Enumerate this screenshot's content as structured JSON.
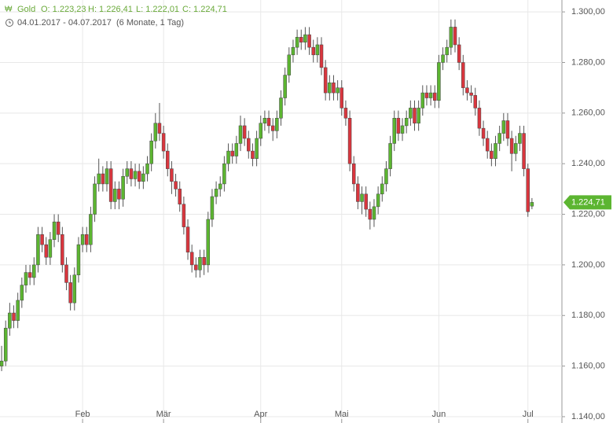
{
  "chart_data": {
    "type": "candlestick",
    "name": "Gold",
    "ohlc_labels": [
      {
        "value": 1223.23,
        "label": "O: 1.223,23"
      },
      {
        "value": 1226.41,
        "label": "H: 1.226,41"
      },
      {
        "value": 1222.01,
        "label": "L: 1.222,01"
      },
      {
        "value": 1224.71,
        "label": "C: 1.224,71"
      }
    ],
    "period": "04.01.2017 - 04.07.2017",
    "range_label": "(6 Monate, 1 Tag)",
    "last_price": {
      "value": 1224.71,
      "label": "1.224,71"
    },
    "up_color": "#5cb531",
    "down_color": "#d9363e",
    "grid": true,
    "xlim": [
      -0.4,
      138.4
    ],
    "xticks": [
      {
        "value": 20,
        "label": "Feb"
      },
      {
        "value": 40,
        "label": "Mär"
      },
      {
        "value": 64,
        "label": "Apr"
      },
      {
        "value": 84,
        "label": "Mai"
      },
      {
        "value": 108,
        "label": "Jun"
      },
      {
        "value": 130,
        "label": "Jul"
      }
    ],
    "ylim": [
      1137.5,
      1304.7
    ],
    "yticks": [
      {
        "value": 1140,
        "label": "1.140,00"
      },
      {
        "value": 1160,
        "label": "1.160,00"
      },
      {
        "value": 1180,
        "label": "1.180,00"
      },
      {
        "value": 1200,
        "label": "1.200,00"
      },
      {
        "value": 1220,
        "label": "1.220,00"
      },
      {
        "value": 1240,
        "label": "1.240,00"
      },
      {
        "value": 1260,
        "label": "1.260,00"
      },
      {
        "value": 1280,
        "label": "1.280,00"
      },
      {
        "value": 1300,
        "label": "1.300,00"
      }
    ],
    "open": [
      1160,
      1162,
      1175,
      1181,
      1178,
      1186,
      1192,
      1197,
      1195,
      1200,
      1212,
      1208,
      1203,
      1210,
      1217,
      1212,
      1200,
      1193,
      1185,
      1196,
      1208,
      1212,
      1208,
      1220,
      1232,
      1236,
      1232,
      1238,
      1225,
      1230,
      1226,
      1235,
      1238,
      1234,
      1237,
      1233,
      1236,
      1240,
      1249,
      1256,
      1252,
      1245,
      1238,
      1233,
      1230,
      1224,
      1215,
      1205,
      1200,
      1198,
      1203,
      1200,
      1218,
      1227,
      1230,
      1232,
      1240,
      1245,
      1243,
      1248,
      1255,
      1250,
      1245,
      1242,
      1250,
      1256,
      1258,
      1255,
      1253,
      1258,
      1266,
      1275,
      1283,
      1286,
      1290,
      1288,
      1291,
      1286,
      1283,
      1287,
      1278,
      1268,
      1272,
      1268,
      1270,
      1262,
      1258,
      1240,
      1232,
      1225,
      1228,
      1222,
      1218,
      1223,
      1228,
      1232,
      1238,
      1248,
      1258,
      1252,
      1255,
      1258,
      1262,
      1256,
      1262,
      1268,
      1266,
      1268,
      1265,
      1280,
      1283,
      1286,
      1294,
      1287,
      1280,
      1270,
      1268,
      1267,
      1262,
      1254,
      1250,
      1245,
      1242,
      1248,
      1252,
      1257,
      1250,
      1244,
      1248,
      1252,
      1238,
      1223.23
    ],
    "high": [
      1168,
      1178,
      1185,
      1184,
      1189,
      1195,
      1200,
      1200,
      1203,
      1215,
      1215,
      1211,
      1213,
      1220,
      1220,
      1215,
      1203,
      1196,
      1199,
      1211,
      1215,
      1215,
      1223,
      1235,
      1242,
      1239,
      1241,
      1241,
      1233,
      1233,
      1238,
      1241,
      1241,
      1240,
      1240,
      1239,
      1243,
      1252,
      1260,
      1264,
      1255,
      1248,
      1241,
      1236,
      1233,
      1227,
      1218,
      1208,
      1203,
      1206,
      1206,
      1221,
      1230,
      1233,
      1235,
      1243,
      1248,
      1248,
      1251,
      1259,
      1258,
      1253,
      1248,
      1253,
      1259,
      1261,
      1261,
      1258,
      1261,
      1269,
      1278,
      1286,
      1289,
      1293,
      1293,
      1294,
      1294,
      1289,
      1290,
      1290,
      1281,
      1275,
      1275,
      1273,
      1273,
      1265,
      1261,
      1243,
      1235,
      1231,
      1231,
      1225,
      1226,
      1231,
      1235,
      1241,
      1251,
      1261,
      1261,
      1258,
      1261,
      1265,
      1265,
      1265,
      1271,
      1271,
      1271,
      1271,
      1283,
      1286,
      1289,
      1297,
      1297,
      1290,
      1283,
      1273,
      1271,
      1270,
      1265,
      1257,
      1253,
      1248,
      1251,
      1255,
      1260,
      1260,
      1253,
      1251,
      1255,
      1255,
      1240,
      1226.41
    ],
    "low": [
      1158,
      1160,
      1172,
      1175,
      1175,
      1183,
      1189,
      1192,
      1192,
      1197,
      1205,
      1200,
      1200,
      1207,
      1209,
      1197,
      1190,
      1182,
      1182,
      1193,
      1205,
      1205,
      1205,
      1217,
      1229,
      1229,
      1229,
      1222,
      1222,
      1222,
      1223,
      1232,
      1231,
      1231,
      1230,
      1230,
      1233,
      1237,
      1246,
      1249,
      1242,
      1235,
      1228,
      1227,
      1221,
      1212,
      1202,
      1197,
      1195,
      1195,
      1196,
      1197,
      1215,
      1224,
      1227,
      1229,
      1237,
      1240,
      1240,
      1245,
      1247,
      1242,
      1239,
      1239,
      1247,
      1253,
      1252,
      1249,
      1250,
      1255,
      1263,
      1272,
      1280,
      1283,
      1285,
      1285,
      1283,
      1280,
      1280,
      1275,
      1265,
      1265,
      1265,
      1265,
      1259,
      1255,
      1237,
      1229,
      1222,
      1220,
      1219,
      1214,
      1215,
      1220,
      1225,
      1229,
      1235,
      1245,
      1249,
      1249,
      1252,
      1255,
      1253,
      1253,
      1259,
      1263,
      1263,
      1262,
      1262,
      1277,
      1280,
      1283,
      1284,
      1277,
      1267,
      1265,
      1264,
      1259,
      1251,
      1247,
      1242,
      1239,
      1239,
      1245,
      1249,
      1247,
      1237,
      1241,
      1245,
      1235,
      1219,
      1222.01
    ],
    "close": [
      1162,
      1175,
      1181,
      1178,
      1186,
      1192,
      1197,
      1195,
      1200,
      1212,
      1208,
      1203,
      1210,
      1217,
      1212,
      1200,
      1193,
      1185,
      1196,
      1208,
      1212,
      1208,
      1220,
      1232,
      1236,
      1232,
      1238,
      1225,
      1230,
      1226,
      1235,
      1238,
      1234,
      1237,
      1233,
      1236,
      1240,
      1249,
      1256,
      1252,
      1245,
      1238,
      1233,
      1230,
      1224,
      1215,
      1205,
      1200,
      1198,
      1203,
      1200,
      1218,
      1227,
      1230,
      1232,
      1240,
      1245,
      1243,
      1248,
      1255,
      1250,
      1245,
      1242,
      1250,
      1256,
      1258,
      1255,
      1253,
      1258,
      1266,
      1275,
      1283,
      1286,
      1290,
      1288,
      1291,
      1286,
      1283,
      1287,
      1278,
      1268,
      1272,
      1268,
      1270,
      1262,
      1258,
      1240,
      1232,
      1225,
      1228,
      1222,
      1218,
      1223,
      1228,
      1232,
      1238,
      1248,
      1258,
      1252,
      1255,
      1258,
      1262,
      1256,
      1262,
      1268,
      1266,
      1268,
      1265,
      1280,
      1283,
      1286,
      1294,
      1287,
      1280,
      1270,
      1268,
      1267,
      1262,
      1254,
      1250,
      1245,
      1242,
      1248,
      1252,
      1257,
      1250,
      1244,
      1248,
      1252,
      1238,
      1221,
      1224.71
    ]
  }
}
